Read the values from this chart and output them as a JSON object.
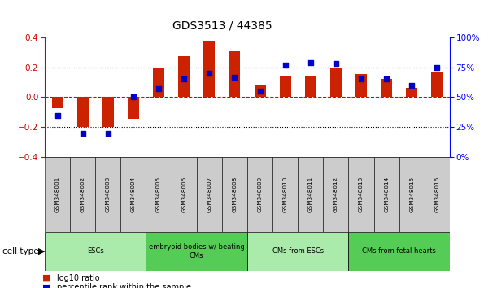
{
  "title": "GDS3513 / 44385",
  "samples": [
    "GSM348001",
    "GSM348002",
    "GSM348003",
    "GSM348004",
    "GSM348005",
    "GSM348006",
    "GSM348007",
    "GSM348008",
    "GSM348009",
    "GSM348010",
    "GSM348011",
    "GSM348012",
    "GSM348013",
    "GSM348014",
    "GSM348015",
    "GSM348016"
  ],
  "log10_ratio": [
    -0.075,
    -0.2,
    -0.2,
    -0.145,
    0.2,
    0.275,
    0.375,
    0.305,
    0.08,
    0.145,
    0.145,
    0.195,
    0.155,
    0.12,
    0.065,
    0.165
  ],
  "percentile_rank": [
    35,
    20,
    20,
    50,
    57,
    65,
    70,
    67,
    55,
    77,
    79,
    78,
    65,
    65,
    60,
    75
  ],
  "cell_type_groups": [
    {
      "label": "ESCs",
      "start": 0,
      "end": 3,
      "color": "#AAEAAA"
    },
    {
      "label": "embryoid bodies w/ beating\nCMs",
      "start": 4,
      "end": 7,
      "color": "#55CC55"
    },
    {
      "label": "CMs from ESCs",
      "start": 8,
      "end": 11,
      "color": "#AAEAAA"
    },
    {
      "label": "CMs from fetal hearts",
      "start": 12,
      "end": 15,
      "color": "#55CC55"
    }
  ],
  "bar_color": "#CC2200",
  "dot_color": "#0000CC",
  "left_ylim": [
    -0.4,
    0.4
  ],
  "right_ylim": [
    0,
    100
  ],
  "left_yticks": [
    -0.4,
    -0.2,
    0.0,
    0.2,
    0.4
  ],
  "right_yticks": [
    0,
    25,
    50,
    75,
    100
  ],
  "legend_log10": "log10 ratio",
  "legend_pct": "percentile rank within the sample"
}
